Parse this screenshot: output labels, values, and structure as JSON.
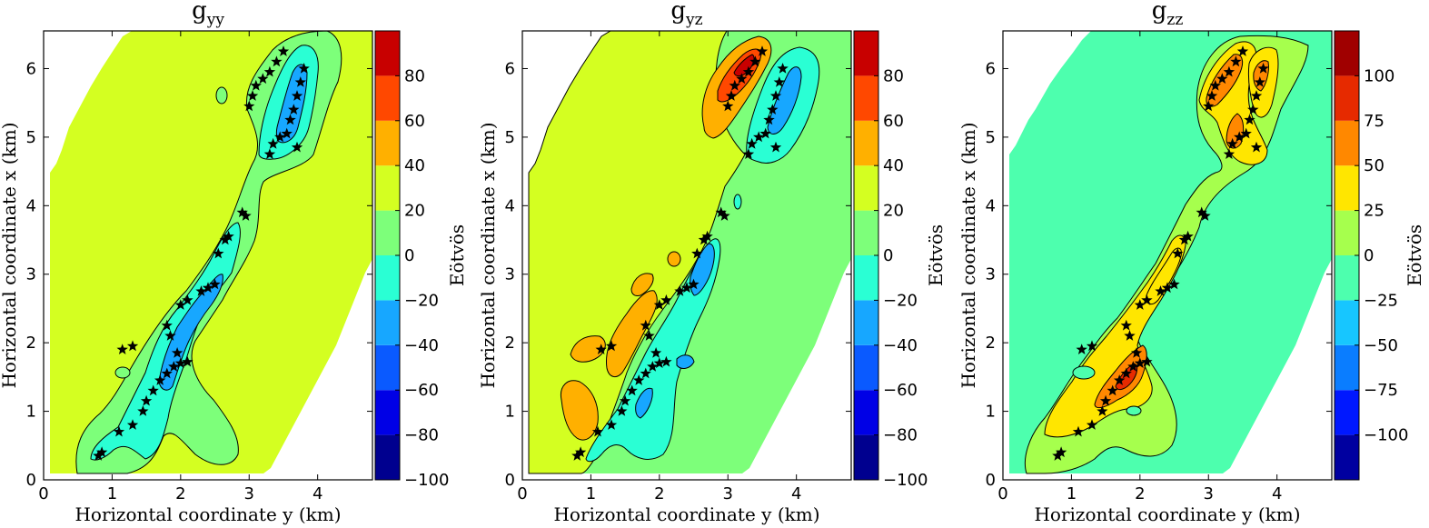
{
  "chart_data": [
    {
      "type": "contour",
      "title_base": "g",
      "title_sub": "yy",
      "xlabel": "Horizontal coordinate y (km)",
      "ylabel": "Horizontal coordinate x (km)",
      "xlim": [
        0,
        4.8
      ],
      "ylim": [
        0,
        6.55
      ],
      "xticks": [
        "0",
        "1",
        "2",
        "3",
        "4"
      ],
      "yticks": [
        "0",
        "1",
        "2",
        "3",
        "4",
        "5",
        "6"
      ],
      "colorbar": {
        "label": "Eötvös",
        "levels": [
          -100,
          -80,
          -60,
          -40,
          -20,
          0,
          20,
          40,
          60,
          80
        ],
        "ticks": [
          "80",
          "60",
          "40",
          "20",
          "0",
          "−20",
          "−40",
          "−60",
          "−80",
          "−100"
        ]
      },
      "background_level": "0 to 20",
      "colors": {
        "bg": "#d4ff21",
        "ring1": "#7dff7a",
        "ring2": "#2affd4",
        "ring3": "#17a7ff"
      }
    },
    {
      "type": "contour",
      "title_base": "g",
      "title_sub": "yz",
      "xlabel": "Horizontal coordinate y (km)",
      "ylabel": "Horizontal coordinate x (km)",
      "xlim": [
        0,
        4.8
      ],
      "ylim": [
        0,
        6.55
      ],
      "xticks": [
        "0",
        "1",
        "2",
        "3",
        "4"
      ],
      "yticks": [
        "0",
        "1",
        "2",
        "3",
        "4",
        "5",
        "6"
      ],
      "colorbar": {
        "label": "Eötvös",
        "levels": [
          -100,
          -80,
          -60,
          -40,
          -20,
          0,
          20,
          40,
          60,
          80
        ],
        "ticks": [
          "80",
          "60",
          "40",
          "20",
          "0",
          "−20",
          "−40",
          "−60",
          "−80",
          "−100"
        ]
      },
      "colors": {
        "left": "#d4ff21",
        "right": "#7dff7a",
        "pos1": "#ffb000",
        "pos2": "#ff4800",
        "pos3": "#c80000",
        "neg1": "#2affd4",
        "neg2": "#17a7ff"
      }
    },
    {
      "type": "contour",
      "title_base": "g",
      "title_sub": "zz",
      "xlabel": "Horizontal coordinate y (km)",
      "ylabel": "Horizontal coordinate x (km)",
      "xlim": [
        0,
        4.8
      ],
      "ylim": [
        0,
        6.55
      ],
      "xticks": [
        "0",
        "1",
        "2",
        "3",
        "4"
      ],
      "yticks": [
        "0",
        "1",
        "2",
        "3",
        "4",
        "5",
        "6"
      ],
      "colorbar": {
        "label": "Eötvös",
        "levels": [
          -125,
          -100,
          -75,
          -50,
          -25,
          0,
          25,
          50,
          75,
          100,
          125
        ],
        "ticks": [
          "100",
          "75",
          "50",
          "25",
          "0",
          "−25",
          "−50",
          "−75",
          "−100"
        ]
      },
      "colors": {
        "bg": "#4dffae",
        "ring1": "#a6ff4d",
        "ring2": "#ffe600",
        "ring3": "#ff8800",
        "ring4": "#e62a00"
      }
    }
  ],
  "stations_km": [
    [
      0.8,
      0.35
    ],
    [
      0.85,
      0.4
    ],
    [
      1.1,
      0.7
    ],
    [
      1.3,
      0.8
    ],
    [
      1.45,
      1.0
    ],
    [
      1.5,
      1.15
    ],
    [
      1.6,
      1.3
    ],
    [
      1.7,
      1.45
    ],
    [
      1.8,
      1.55
    ],
    [
      1.9,
      1.65
    ],
    [
      2.0,
      1.7
    ],
    [
      2.1,
      1.72
    ],
    [
      1.95,
      1.85
    ],
    [
      1.85,
      2.1
    ],
    [
      1.8,
      2.25
    ],
    [
      1.15,
      1.9
    ],
    [
      1.3,
      1.95
    ],
    [
      2.0,
      2.55
    ],
    [
      2.1,
      2.62
    ],
    [
      2.3,
      2.75
    ],
    [
      2.4,
      2.8
    ],
    [
      2.5,
      2.85
    ],
    [
      2.55,
      3.3
    ],
    [
      2.65,
      3.5
    ],
    [
      2.7,
      3.55
    ],
    [
      2.9,
      3.9
    ],
    [
      2.95,
      3.85
    ],
    [
      3.3,
      4.75
    ],
    [
      3.35,
      4.9
    ],
    [
      3.45,
      5.0
    ],
    [
      3.55,
      5.05
    ],
    [
      3.6,
      5.25
    ],
    [
      3.65,
      5.4
    ],
    [
      3.7,
      5.6
    ],
    [
      3.75,
      5.8
    ],
    [
      3.8,
      6.0
    ],
    [
      3.7,
      4.85
    ],
    [
      3.0,
      5.45
    ],
    [
      3.05,
      5.6
    ],
    [
      3.1,
      5.75
    ],
    [
      3.2,
      5.85
    ],
    [
      3.3,
      5.95
    ],
    [
      3.4,
      6.1
    ],
    [
      3.5,
      6.25
    ]
  ]
}
